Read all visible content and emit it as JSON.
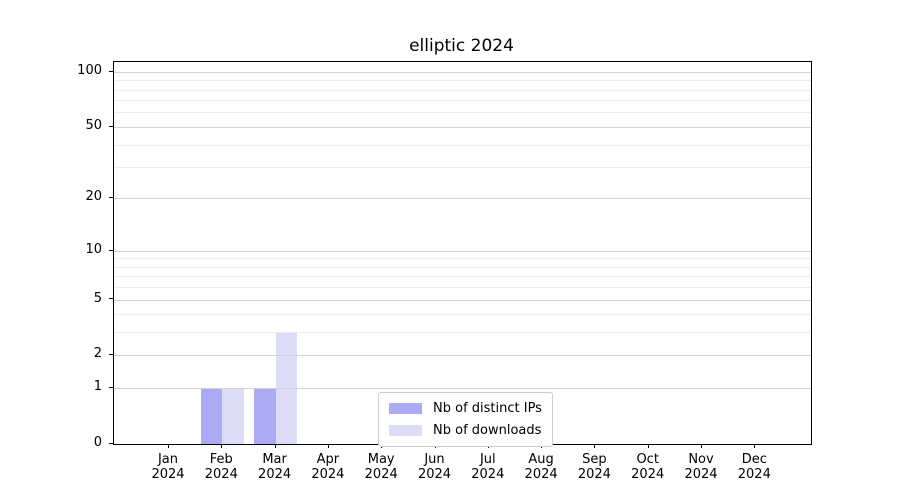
{
  "title": "elliptic 2024",
  "chart_data": {
    "type": "bar",
    "title": "elliptic 2024",
    "categories": [
      {
        "month": "Jan",
        "year": "2024"
      },
      {
        "month": "Feb",
        "year": "2024"
      },
      {
        "month": "Mar",
        "year": "2024"
      },
      {
        "month": "Apr",
        "year": "2024"
      },
      {
        "month": "May",
        "year": "2024"
      },
      {
        "month": "Jun",
        "year": "2024"
      },
      {
        "month": "Jul",
        "year": "2024"
      },
      {
        "month": "Aug",
        "year": "2024"
      },
      {
        "month": "Sep",
        "year": "2024"
      },
      {
        "month": "Oct",
        "year": "2024"
      },
      {
        "month": "Nov",
        "year": "2024"
      },
      {
        "month": "Dec",
        "year": "2024"
      }
    ],
    "series": [
      {
        "name": "Nb of distinct IPs",
        "color": "#aaaaf5",
        "values": [
          0,
          1,
          1,
          0,
          0,
          0,
          0,
          0,
          0,
          0,
          0,
          0
        ]
      },
      {
        "name": "Nb of downloads",
        "color": "#dcdcf7",
        "values": [
          0,
          1,
          3,
          0,
          0,
          0,
          0,
          0,
          0,
          0,
          0,
          0
        ]
      }
    ],
    "yscale": "log1p",
    "ylim": [
      0,
      113
    ],
    "y_major_ticks": [
      0,
      1,
      2,
      5,
      10,
      20,
      50,
      100
    ],
    "y_minor_gridlines": [
      3,
      4,
      6,
      7,
      8,
      9,
      30,
      40,
      60,
      70,
      80,
      90
    ],
    "grid": true,
    "legend_position": "bottom-center"
  },
  "colors": {
    "grid_major": "#d2d2d2",
    "grid_minor": "#ececec",
    "spine": "#000000",
    "background": "#ffffff",
    "legend_border": "#cccccc",
    "text": "#000000"
  }
}
